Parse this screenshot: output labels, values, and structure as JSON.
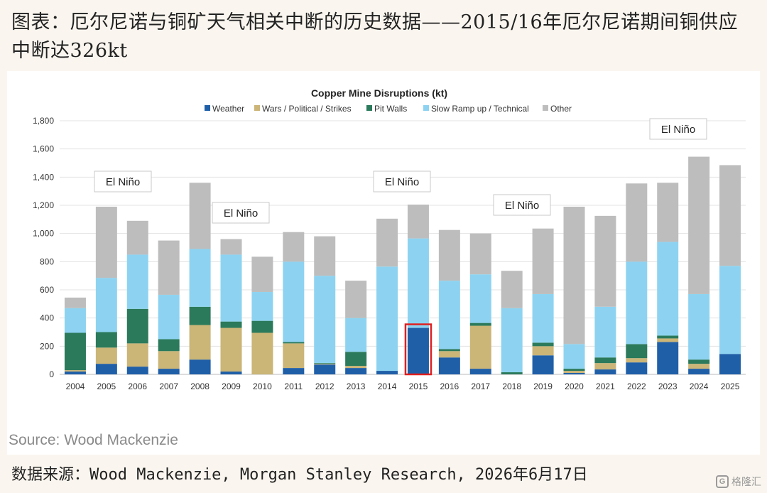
{
  "header": {
    "title": "图表：厄尔尼诺与铜矿天气相关中断的历史数据——2015/16年厄尔尼诺期间铜供应中断达326kt"
  },
  "source": "Source: Wood Mackenzie",
  "footer_note": "数据来源：Wood Mackenzie, Morgan Stanley Research, 2026年6月17日",
  "watermark": {
    "text": "格隆汇",
    "logo_icon": "gelonghui-logo-icon"
  },
  "chart_data": {
    "type": "bar",
    "stacked": true,
    "title": "Copper Mine Disruptions (kt)",
    "xlabel": "",
    "ylabel": "",
    "ylim": [
      0,
      1800
    ],
    "yticks": [
      "0",
      "200",
      "400",
      "600",
      "800",
      "1,000",
      "1,200",
      "1,400",
      "1,600",
      "1,800"
    ],
    "grid": true,
    "legend_position": "top",
    "categories": [
      "2004",
      "2005",
      "2006",
      "2007",
      "2008",
      "2009",
      "2010",
      "2011",
      "2012",
      "2013",
      "2014",
      "2015",
      "2016",
      "2017",
      "2018",
      "2019",
      "2020",
      "2021",
      "2022",
      "2023",
      "2024",
      "2025"
    ],
    "series": [
      {
        "name": "Weather",
        "color": "#1f5fa8",
        "values": [
          20,
          75,
          55,
          40,
          105,
          20,
          0,
          45,
          70,
          45,
          25,
          330,
          120,
          40,
          0,
          135,
          10,
          35,
          85,
          230,
          40,
          145
        ]
      },
      {
        "name": "Wars / Political / Strikes",
        "color": "#cbb577",
        "values": [
          10,
          115,
          165,
          125,
          245,
          310,
          295,
          175,
          5,
          15,
          0,
          0,
          45,
          305,
          0,
          65,
          15,
          45,
          30,
          25,
          35,
          0
        ]
      },
      {
        "name": "Pit Walls",
        "color": "#2b7a5b",
        "values": [
          265,
          110,
          245,
          85,
          130,
          45,
          85,
          10,
          5,
          100,
          0,
          0,
          15,
          20,
          15,
          25,
          15,
          40,
          100,
          20,
          30,
          0
        ]
      },
      {
        "name": "Slow Ramp up / Technical",
        "color": "#8dd3f1",
        "values": [
          175,
          385,
          385,
          315,
          410,
          475,
          205,
          570,
          620,
          240,
          740,
          635,
          485,
          345,
          455,
          345,
          175,
          360,
          585,
          665,
          465,
          625
        ]
      },
      {
        "name": "Other",
        "color": "#bdbdbd",
        "values": [
          75,
          505,
          240,
          385,
          470,
          110,
          250,
          210,
          280,
          265,
          340,
          240,
          360,
          290,
          265,
          465,
          975,
          645,
          555,
          420,
          975,
          715
        ]
      }
    ],
    "highlight": {
      "category": "2015",
      "series": "Weather",
      "color": "#e02020"
    },
    "annotations": [
      {
        "text": "El Niño",
        "near": "2005-2006"
      },
      {
        "text": "El Niño",
        "near": "2009"
      },
      {
        "text": "El Niño",
        "near": "2015"
      },
      {
        "text": "El Niño",
        "near": "2018"
      },
      {
        "text": "El Niño",
        "near": "2024"
      }
    ]
  }
}
